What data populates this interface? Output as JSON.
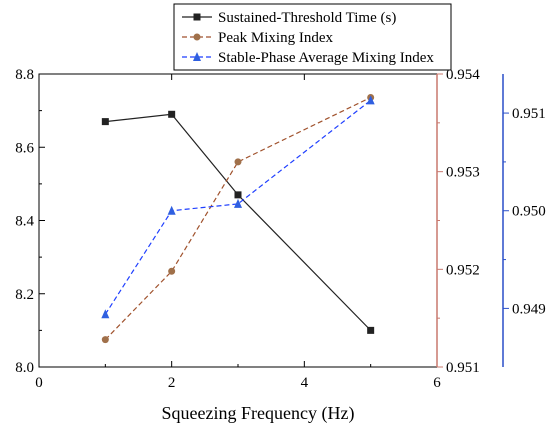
{
  "chart_data": {
    "type": "line",
    "title": "",
    "xlabel": "Squeezing Frequency (Hz)",
    "xlim": [
      0,
      6
    ],
    "x_ticks": [
      0,
      2,
      4,
      6
    ],
    "grid": false,
    "legend_position": "top-right",
    "axes": [
      {
        "id": "y1",
        "side": "left",
        "ylim": [
          8.0,
          8.8
        ],
        "ticks": [
          8.0,
          8.2,
          8.4,
          8.6,
          8.8
        ],
        "tick_format": 1,
        "color": "#000000"
      },
      {
        "id": "y2",
        "side": "right",
        "ylim": [
          0.951,
          0.954
        ],
        "ticks": [
          0.951,
          0.952,
          0.953,
          0.954
        ],
        "tick_format": 3,
        "color": "#c8786e"
      },
      {
        "id": "y3",
        "side": "right-offset",
        "ylim": [
          0.9484,
          0.9514
        ],
        "ticks": [
          0.949,
          0.95,
          0.951
        ],
        "tick_format": 3,
        "color": "#2a4fc8"
      }
    ],
    "series": [
      {
        "name": "Sustained-Threshold Time (s)",
        "axis": "y1",
        "color": "#222222",
        "line_style": "solid",
        "marker": "square",
        "x": [
          1,
          2,
          3,
          5
        ],
        "y": [
          8.67,
          8.69,
          8.47,
          8.1
        ]
      },
      {
        "name": "Peak Mixing Index",
        "axis": "y2",
        "color": "#a0522d",
        "marker_color": "#a0704a",
        "line_style": "dashed",
        "marker": "circle",
        "x": [
          1,
          2,
          3,
          5
        ],
        "y": [
          0.95128,
          0.95198,
          0.9531,
          0.95376
        ]
      },
      {
        "name": "Stable-Phase Average Mixing Index",
        "axis": "y3",
        "color": "#1f3fff",
        "marker_color": "#2f5fe0",
        "line_style": "dashed",
        "marker": "triangle",
        "x": [
          1,
          2,
          3,
          5
        ],
        "y": [
          0.94894,
          0.95,
          0.95007,
          0.95113
        ]
      }
    ]
  }
}
